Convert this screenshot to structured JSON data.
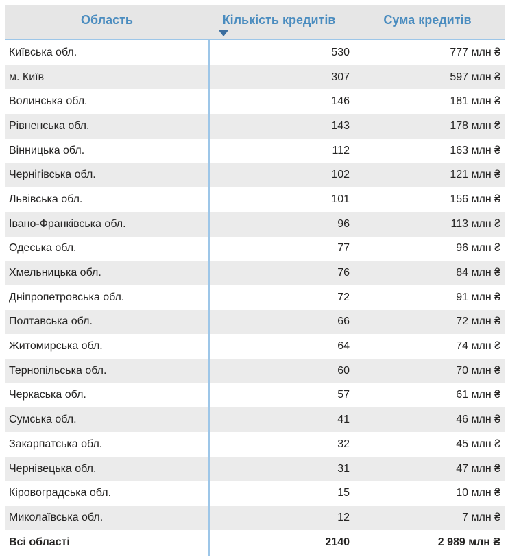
{
  "chart_data": {
    "type": "table",
    "columns": [
      "Область",
      "Кількість кредитів",
      "Сума кредитів"
    ],
    "sort": {
      "column_index": 1,
      "direction": "desc"
    },
    "unit_suffix": "млн ₴",
    "rows": [
      {
        "region": "Київська обл.",
        "count": 530,
        "sum_mln": 777
      },
      {
        "region": "м. Київ",
        "count": 307,
        "sum_mln": 597
      },
      {
        "region": "Волинська обл.",
        "count": 146,
        "sum_mln": 181
      },
      {
        "region": "Рівненська обл.",
        "count": 143,
        "sum_mln": 178
      },
      {
        "region": "Вінницька обл.",
        "count": 112,
        "sum_mln": 163
      },
      {
        "region": "Чернігівська обл.",
        "count": 102,
        "sum_mln": 121
      },
      {
        "region": "Львівська обл.",
        "count": 101,
        "sum_mln": 156
      },
      {
        "region": "Івано-Франківська обл.",
        "count": 96,
        "sum_mln": 113
      },
      {
        "region": "Одеська обл.",
        "count": 77,
        "sum_mln": 96
      },
      {
        "region": "Хмельницька обл.",
        "count": 76,
        "sum_mln": 84
      },
      {
        "region": "Дніпропетровська обл.",
        "count": 72,
        "sum_mln": 91
      },
      {
        "region": "Полтавська обл.",
        "count": 66,
        "sum_mln": 72
      },
      {
        "region": "Житомирська обл.",
        "count": 64,
        "sum_mln": 74
      },
      {
        "region": "Тернопільська обл.",
        "count": 60,
        "sum_mln": 70
      },
      {
        "region": "Черкаська обл.",
        "count": 57,
        "sum_mln": 61
      },
      {
        "region": "Сумська обл.",
        "count": 41,
        "sum_mln": 46
      },
      {
        "region": "Закарпатська обл.",
        "count": 32,
        "sum_mln": 45
      },
      {
        "region": "Чернівецька обл.",
        "count": 31,
        "sum_mln": 47
      },
      {
        "region": "Кіровоградська обл.",
        "count": 15,
        "sum_mln": 10
      },
      {
        "region": "Миколаївська обл.",
        "count": 12,
        "sum_mln": 7
      }
    ],
    "total": {
      "region": "Всі області",
      "count": 2140,
      "sum_display": "2 989 млн ₴"
    }
  },
  "colors": {
    "header_text": "#4a8cbf",
    "header_bg": "#e6e6e6",
    "row_alt_bg": "#ebebeb",
    "divider": "#9dc6e8",
    "sort_arrow": "#3b6e9f",
    "text": "#252423"
  }
}
